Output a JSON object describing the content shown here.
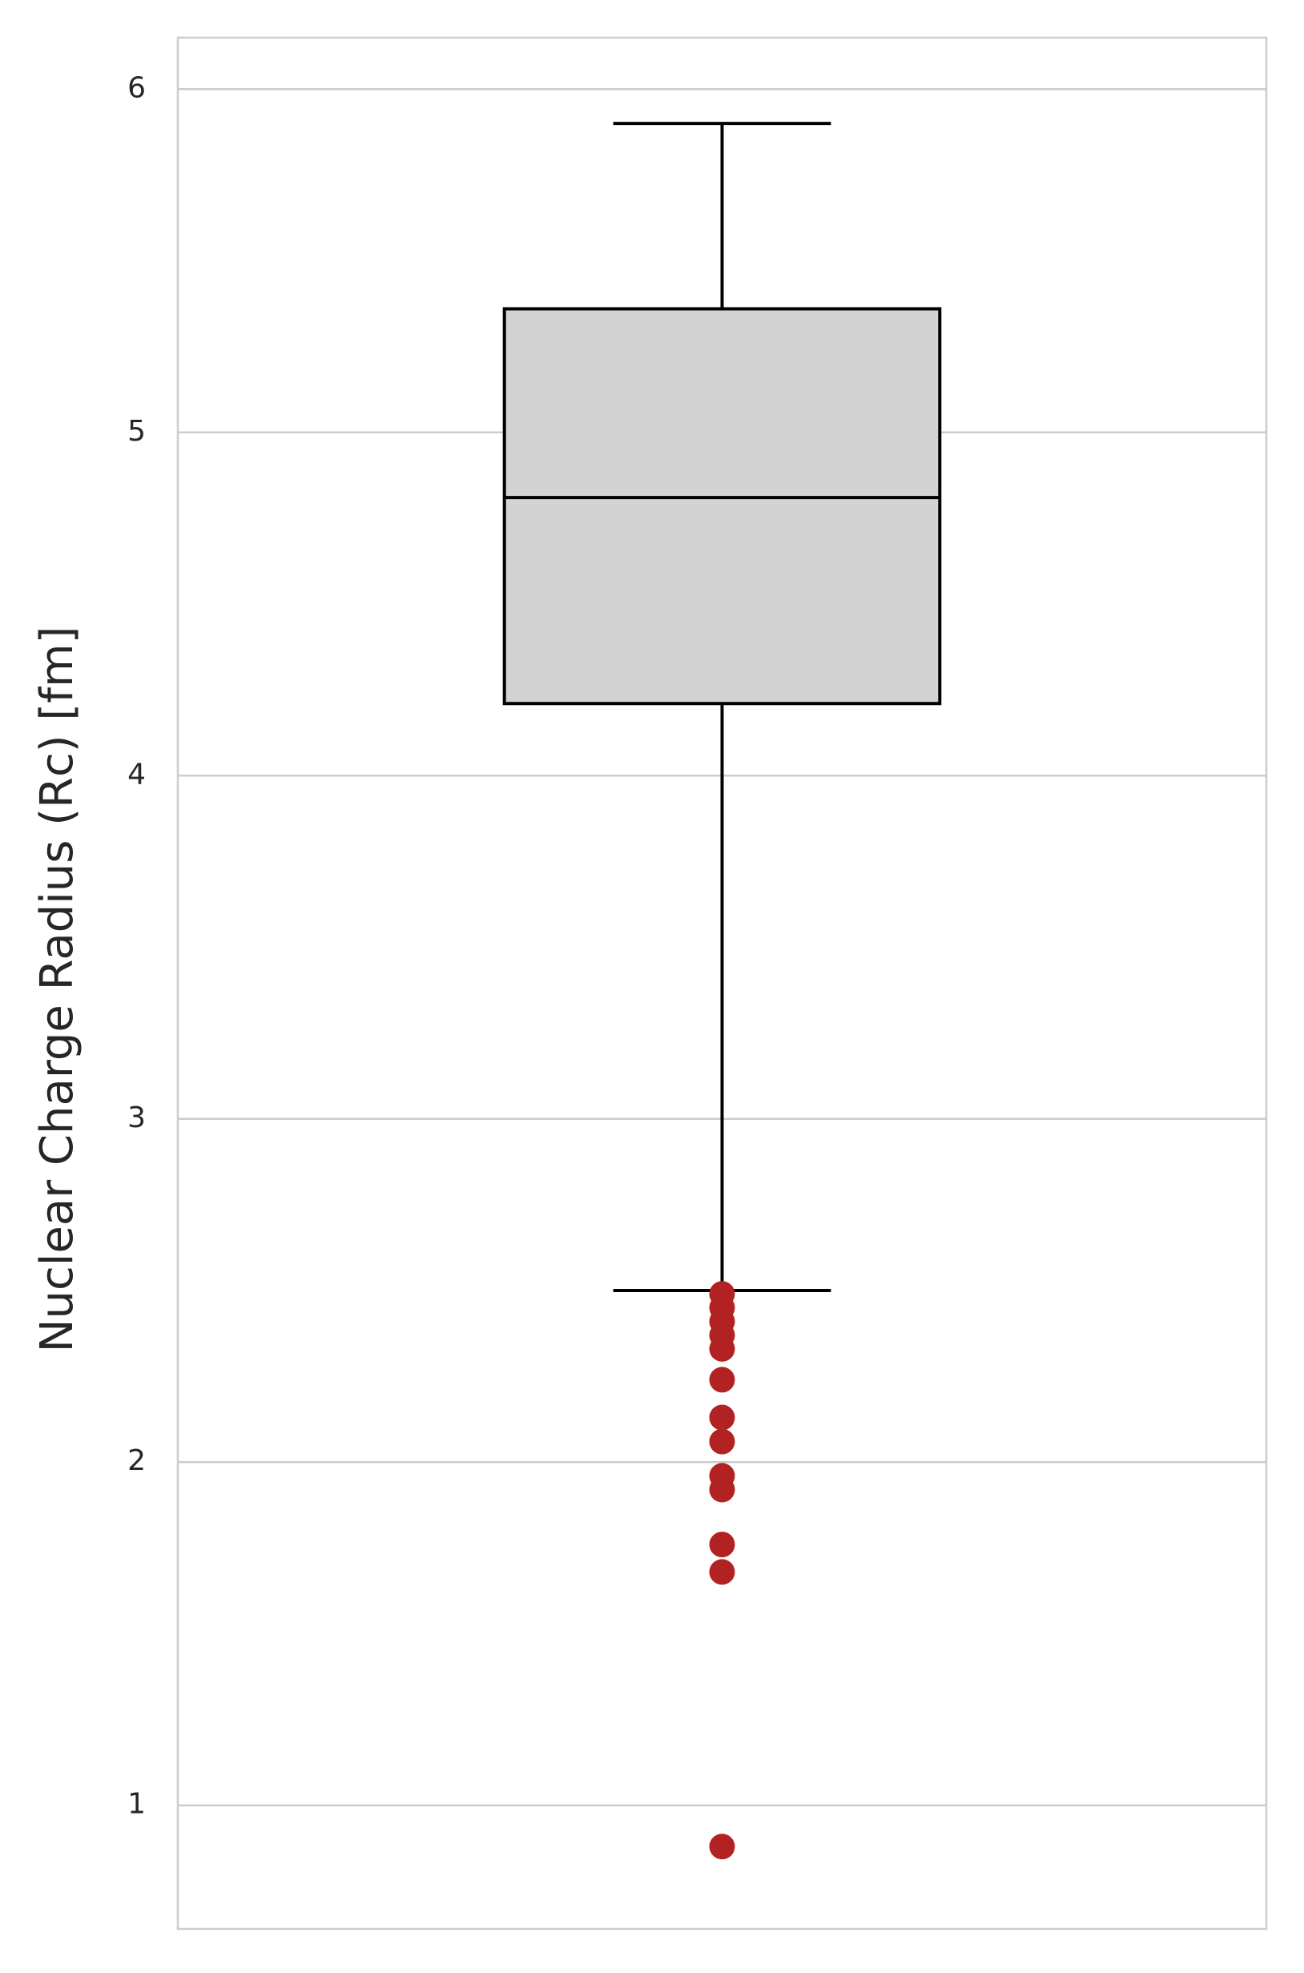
{
  "chart_data": {
    "type": "box",
    "y_label": "Nuclear Charge Radius (Rc) [fm]",
    "ylim": [
      0.64,
      6.15
    ],
    "yticks": [
      1,
      2,
      3,
      4,
      5,
      6
    ],
    "grid": true,
    "box_color": "#d3d3d3",
    "flier_color": "#b22222",
    "boxes": [
      {
        "whislo": 2.5,
        "q1": 4.21,
        "med": 4.81,
        "q3": 5.36,
        "whishi": 5.9,
        "fliers": [
          2.49,
          2.45,
          2.41,
          2.37,
          2.33,
          2.24,
          2.13,
          2.06,
          1.96,
          1.92,
          1.76,
          1.68,
          0.88
        ]
      }
    ]
  }
}
